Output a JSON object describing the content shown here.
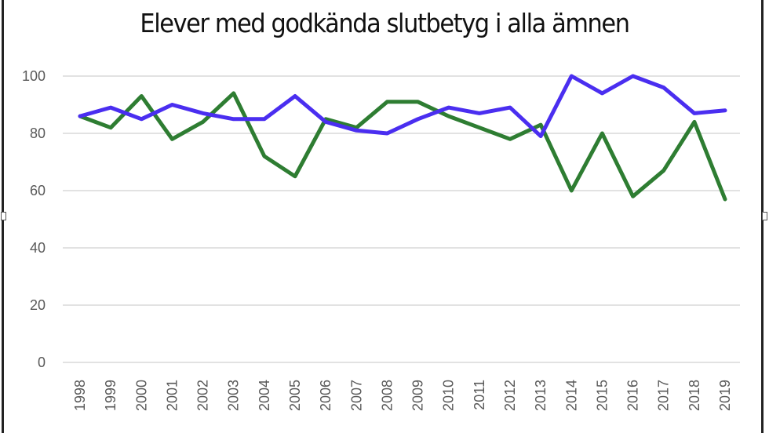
{
  "chart_data": {
    "type": "line",
    "title": "Elever med godkända slutbetyg i alla ämnen",
    "xlabel": "",
    "ylabel": "",
    "ylim": [
      0,
      100
    ],
    "yticks": [
      "0",
      "20",
      "40",
      "60",
      "80",
      "100"
    ],
    "grid": true,
    "legend": "none",
    "categories": [
      "1998",
      "1999",
      "2000",
      "2001",
      "2002",
      "2003",
      "2004",
      "2005",
      "2006",
      "2007",
      "2008",
      "2009",
      "2010",
      "2011",
      "2012",
      "2013",
      "2014",
      "2015",
      "2016",
      "2017",
      "2018",
      "2019"
    ],
    "series": [
      {
        "color": "#2e7d32",
        "values": [
          86,
          82,
          93,
          78,
          84,
          94,
          72,
          65,
          85,
          82,
          91,
          91,
          86,
          82,
          78,
          83,
          60,
          80,
          58,
          67,
          84,
          57
        ]
      },
      {
        "color": "#4a2ef0",
        "values": [
          86,
          89,
          85,
          90,
          87,
          85,
          85,
          93,
          84,
          81,
          80,
          85,
          89,
          87,
          89,
          79,
          100,
          94,
          100,
          96,
          87,
          88
        ]
      }
    ]
  }
}
